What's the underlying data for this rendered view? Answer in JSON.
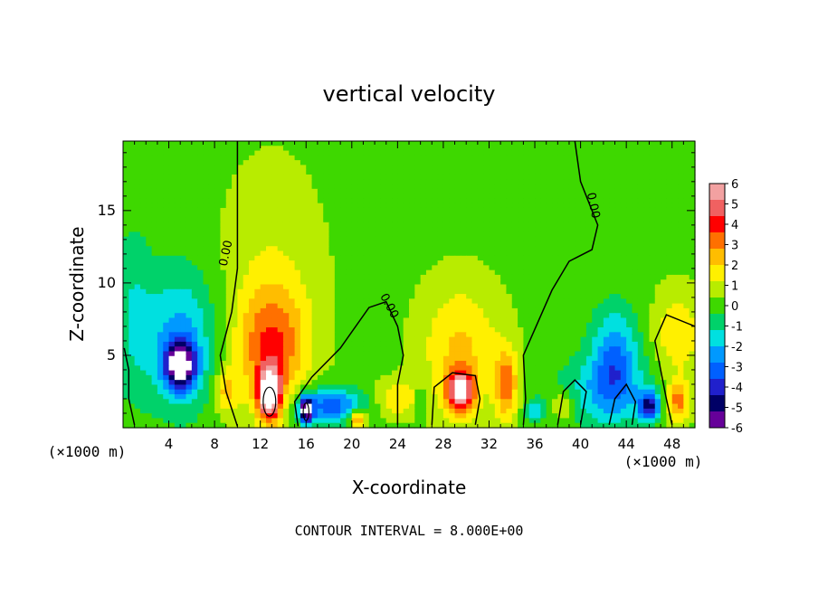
{
  "chart_data": {
    "type": "heatmap",
    "title": "vertical velocity",
    "xlabel": "X-coordinate",
    "ylabel": "Z-coordinate",
    "x_unit_left": "(×1000 m)",
    "x_unit_right": "(×1000 m)",
    "contour_interval_label": "CONTOUR INTERVAL = 8.000E+00",
    "xlim": [
      0,
      50
    ],
    "ylim": [
      0,
      19.8
    ],
    "x_ticks": [
      "4",
      "8",
      "12",
      "16",
      "20",
      "24",
      "28",
      "32",
      "36",
      "40",
      "44",
      "48"
    ],
    "y_ticks": [
      "5",
      "10",
      "15"
    ],
    "contour_labels": [
      "0.00",
      "0.00",
      "0.00"
    ],
    "colorbar": {
      "min": -6,
      "max": 6,
      "ticks": [
        "6",
        "5",
        "4",
        "3",
        "2",
        "1",
        "0",
        "-1",
        "-2",
        "-3",
        "-4",
        "-5",
        "-6"
      ],
      "colors": [
        "#f2a1a1",
        "#f06161",
        "#ff0000",
        "#ff7000",
        "#ffbd00",
        "#fff000",
        "#b8ec00",
        "#3ed800",
        "#00d26a",
        "#00e0e0",
        "#0099ff",
        "#0060ff",
        "#2020cc",
        "#000066",
        "#660099"
      ]
    },
    "features": [
      {
        "x": 5.0,
        "z": 4.3,
        "w": -6.0,
        "rx": 1.3,
        "rz": 1.6
      },
      {
        "x": 5.0,
        "z": 6.0,
        "w": -2.5,
        "rx": 3.2,
        "rz": 4.8
      },
      {
        "x": 0.8,
        "z": 8.0,
        "w": -1.2,
        "rx": 1.8,
        "rz": 6.0
      },
      {
        "x": 12.8,
        "z": 2.3,
        "w": 6.5,
        "rx": 1.0,
        "rz": 1.8
      },
      {
        "x": 13.0,
        "z": 5.5,
        "w": 3.0,
        "rx": 3.0,
        "rz": 4.0
      },
      {
        "x": 13.0,
        "z": 10.0,
        "w": 1.0,
        "rx": 4.5,
        "rz": 8.0
      },
      {
        "x": 16.0,
        "z": 1.2,
        "w": -6.0,
        "rx": 0.6,
        "rz": 0.9
      },
      {
        "x": 18.0,
        "z": 1.5,
        "w": -3.5,
        "rx": 3.0,
        "rz": 1.3
      },
      {
        "x": 29.5,
        "z": 2.5,
        "w": 5.5,
        "rx": 1.2,
        "rz": 1.5
      },
      {
        "x": 29.5,
        "z": 5.5,
        "w": 2.0,
        "rx": 3.5,
        "rz": 4.5
      },
      {
        "x": 33.5,
        "z": 3.0,
        "w": 3.0,
        "rx": 1.0,
        "rz": 2.5
      },
      {
        "x": 43.0,
        "z": 4.8,
        "w": -2.8,
        "rx": 2.0,
        "rz": 3.5
      },
      {
        "x": 42.0,
        "z": 2.5,
        "w": -1.8,
        "rx": 4.0,
        "rz": 2.5
      },
      {
        "x": 46.0,
        "z": 1.5,
        "w": -4.5,
        "rx": 0.9,
        "rz": 1.0
      },
      {
        "x": 48.5,
        "z": 1.8,
        "w": 3.0,
        "rx": 1.0,
        "rz": 1.4
      },
      {
        "x": 48.5,
        "z": 6.5,
        "w": 1.8,
        "rx": 2.0,
        "rz": 3.0
      },
      {
        "x": 24.0,
        "z": 2.0,
        "w": 1.8,
        "rx": 2.0,
        "rz": 1.2
      },
      {
        "x": 20.5,
        "z": 0.6,
        "w": 3.5,
        "rx": 0.8,
        "rz": 0.6
      },
      {
        "x": 9.0,
        "z": 2.5,
        "w": 2.0,
        "rx": 1.0,
        "rz": 1.5
      },
      {
        "x": 36.0,
        "z": 1.2,
        "w": -1.8,
        "rx": 0.8,
        "rz": 0.8
      },
      {
        "x": 38.5,
        "z": 1.5,
        "w": 1.8,
        "rx": 0.9,
        "rz": 1.0
      },
      {
        "x": 26.0,
        "z": 2.0,
        "w": -1.5,
        "rx": 0.6,
        "rz": 1.0
      }
    ]
  }
}
